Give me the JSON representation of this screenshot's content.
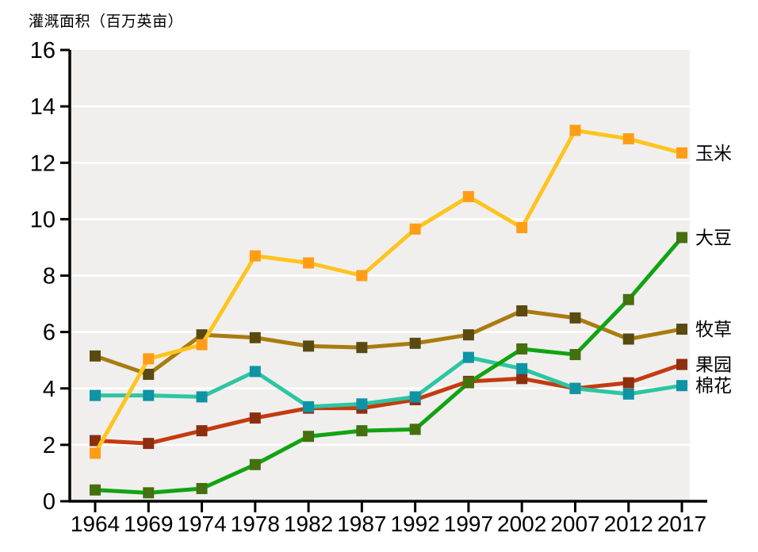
{
  "chart_data": {
    "type": "line",
    "title": "灌溉面积（百万英亩）",
    "ylabel": "灌溉面积（百万英亩）",
    "xlabel": "",
    "categories": [
      "1964",
      "1969",
      "1974",
      "1978",
      "1982",
      "1987",
      "1992",
      "1997",
      "2002",
      "2007",
      "2012",
      "2017"
    ],
    "ylim": [
      0,
      16
    ],
    "yticks": [
      0,
      2,
      4,
      6,
      8,
      10,
      12,
      14,
      16
    ],
    "grid": "horizontal white gridlines every 2 units on light gray plot area",
    "legend_position": "labels at right end of each line",
    "colors": {
      "plot_background": "#F0EFEE",
      "gridline": "#FFFFFF",
      "axis": "#000000",
      "text": "#000000"
    },
    "series": [
      {
        "id": "corn",
        "name": "玉米",
        "line_color": "#FFC41E",
        "marker_color": "#FF9D17",
        "values": [
          1.7,
          5.05,
          5.55,
          8.7,
          8.45,
          8.0,
          9.65,
          10.8,
          9.7,
          13.15,
          12.85,
          12.35
        ]
      },
      {
        "id": "soybean",
        "name": "大豆",
        "line_color": "#12A312",
        "marker_color": "#44700F",
        "values": [
          0.4,
          0.3,
          0.45,
          1.3,
          2.3,
          2.5,
          2.55,
          4.2,
          5.4,
          5.2,
          7.15,
          9.35
        ]
      },
      {
        "id": "hay",
        "name": "牧草",
        "line_color": "#A97C10",
        "marker_color": "#594A11",
        "values": [
          5.15,
          4.5,
          5.9,
          5.8,
          5.5,
          5.45,
          5.6,
          5.9,
          6.75,
          6.5,
          5.75,
          6.1
        ]
      },
      {
        "id": "orchard",
        "name": "果园",
        "line_color": "#C43B10",
        "marker_color": "#8C2F0F",
        "values": [
          2.15,
          2.05,
          2.5,
          2.95,
          3.3,
          3.3,
          3.6,
          4.25,
          4.35,
          4.0,
          4.2,
          4.85
        ]
      },
      {
        "id": "cotton",
        "name": "棉花",
        "line_color": "#2EC5A2",
        "marker_color": "#0E94A4",
        "values": [
          3.75,
          3.75,
          3.7,
          4.6,
          3.35,
          3.45,
          3.7,
          5.1,
          4.7,
          4.0,
          3.8,
          4.1
        ]
      }
    ],
    "draw_order": [
      "orchard",
      "cotton",
      "hay",
      "corn",
      "soybean"
    ]
  }
}
